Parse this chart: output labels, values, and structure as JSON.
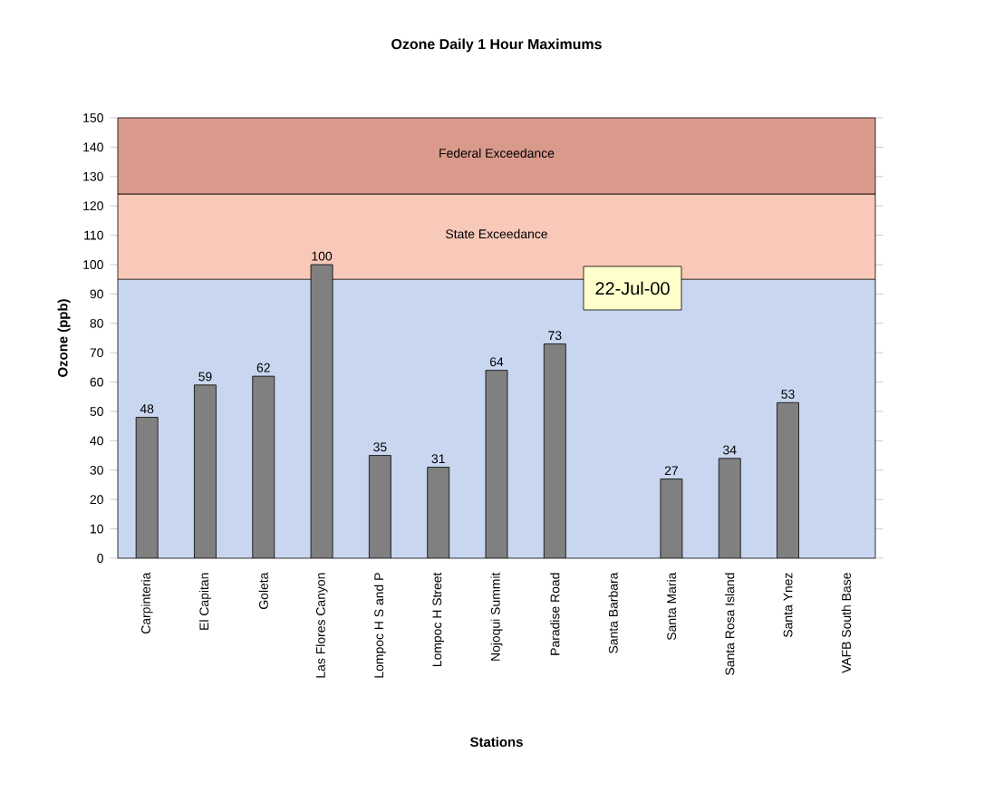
{
  "chart_data": {
    "type": "bar",
    "title": "Ozone Daily 1 Hour Maximums",
    "xlabel": "Stations",
    "ylabel": "Ozone (ppb)",
    "categories": [
      "Carpinteria",
      "El Capitan",
      "Goleta",
      "Las Flores Canyon",
      "Lompoc H S and P",
      "Lompoc H Street",
      "Nojoqui Summit",
      "Paradise Road",
      "Santa Barbara",
      "Santa Maria",
      "Santa Rosa Island",
      "Santa Ynez",
      "VAFB South Base"
    ],
    "values": [
      48,
      59,
      62,
      100,
      35,
      31,
      64,
      73,
      null,
      27,
      34,
      53,
      null
    ],
    "color": "#808080",
    "data_labels": true,
    "grid": false,
    "ylim": [
      0,
      150
    ],
    "yticks": [
      0,
      10,
      20,
      30,
      40,
      50,
      60,
      70,
      80,
      90,
      100,
      110,
      120,
      130,
      140,
      150
    ],
    "bands": [
      {
        "axis": "y",
        "from": 124,
        "to": 150,
        "label": "Federal Exceedance",
        "color": "#d99a8c"
      },
      {
        "axis": "y",
        "from": 95,
        "to": 124,
        "label": "State Exceedance",
        "color": "#f8c8b8"
      }
    ],
    "annotations": [
      "22-Jul-00"
    ]
  }
}
